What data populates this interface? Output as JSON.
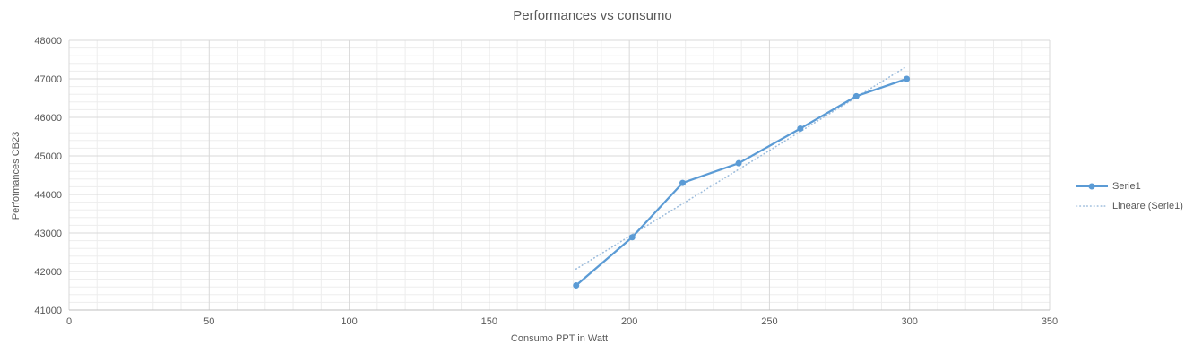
{
  "title": "Performances vs consumo",
  "colors": {
    "series": "#5B9BD5",
    "trendline": "#9CBCDC",
    "text": "#595959",
    "grid_major": "#D9D9D9",
    "grid_minor": "#EDEDED",
    "axis_line": "#BFBFBF",
    "background": "#FFFFFF"
  },
  "legend": {
    "items": [
      {
        "label": "Serie1",
        "style": "line-with-marker"
      },
      {
        "label": "Lineare (Serie1)",
        "style": "dotted-line"
      }
    ],
    "position": "right"
  },
  "chart_data": {
    "type": "line",
    "title": "Performances vs consumo",
    "xlabel": "Consumo PPT in Watt",
    "ylabel": "Perfotmances CB23",
    "x": [
      181,
      201,
      219,
      239,
      261,
      281,
      299
    ],
    "series": [
      {
        "name": "Serie1",
        "values": [
          41640,
          42890,
          44300,
          44810,
          45710,
          46550,
          47000
        ]
      }
    ],
    "trendline": {
      "name": "Lineare (Serie1)",
      "kind": "linear",
      "x": [
        181,
        299
      ],
      "y": [
        42065,
        47325
      ]
    },
    "xlim": [
      0,
      350
    ],
    "ylim": [
      41000,
      48000
    ],
    "x_ticks": [
      0,
      50,
      100,
      150,
      200,
      250,
      300,
      350
    ],
    "y_ticks": [
      41000,
      42000,
      43000,
      44000,
      45000,
      46000,
      47000,
      48000
    ],
    "x_tick_step": 50,
    "y_tick_step": 1000,
    "x_minor_step": 10,
    "y_minor_step": 200,
    "grid": {
      "major": true,
      "minor": true
    },
    "legend_position": "right"
  }
}
